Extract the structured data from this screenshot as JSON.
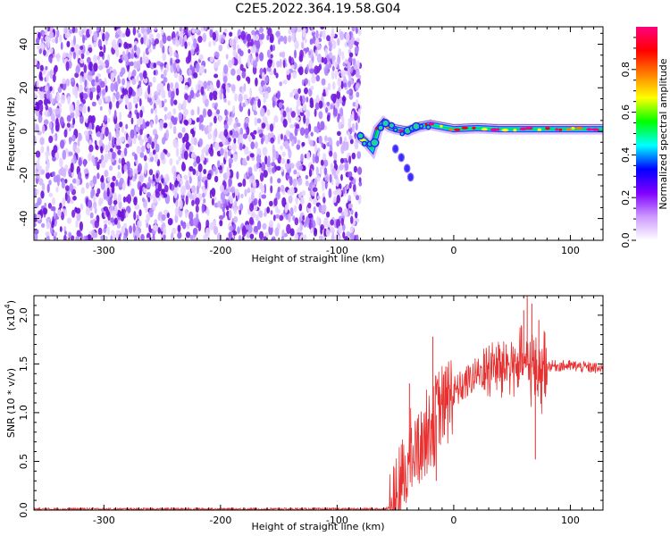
{
  "title": "C2E5.2022.364.19.58.G04",
  "chart_data": [
    {
      "type": "heatmap",
      "xlabel": "Height of straight line (km)",
      "ylabel": "Frequency (Hz)",
      "xlim": [
        -360,
        128
      ],
      "ylim": [
        -50,
        48
      ],
      "xticks": [
        -300,
        -200,
        -100,
        0,
        100
      ],
      "yticks": [
        -40,
        -20,
        0,
        20,
        40
      ],
      "noise_region": {
        "x": [
          -360,
          -80
        ],
        "y": [
          -50,
          48
        ]
      },
      "signal_track": [
        {
          "x": -80,
          "y": -3
        },
        {
          "x": -75,
          "y": -5
        },
        {
          "x": -70,
          "y": -8
        },
        {
          "x": -65,
          "y": 1
        },
        {
          "x": -60,
          "y": 4
        },
        {
          "x": -55,
          "y": 2
        },
        {
          "x": -50,
          "y": 1
        },
        {
          "x": -40,
          "y": 0
        },
        {
          "x": -30,
          "y": 2
        },
        {
          "x": -20,
          "y": 3
        },
        {
          "x": 0,
          "y": 1
        },
        {
          "x": 20,
          "y": 1.5
        },
        {
          "x": 40,
          "y": 1
        },
        {
          "x": 60,
          "y": 1
        },
        {
          "x": 80,
          "y": 1
        },
        {
          "x": 100,
          "y": 1
        },
        {
          "x": 128,
          "y": 1
        }
      ],
      "branch_track": [
        {
          "x": -50,
          "y": -8
        },
        {
          "x": -45,
          "y": -12
        },
        {
          "x": -40,
          "y": -17
        },
        {
          "x": -37,
          "y": -21
        }
      ],
      "colorbar": {
        "label": "Normalized spectral amplitude",
        "range": [
          0,
          1
        ],
        "ticks": [
          "0.0",
          "0.2",
          "0.4",
          "0.6",
          "0.8"
        ],
        "ticks_values": [
          0.0,
          0.2,
          0.4,
          0.6,
          0.8
        ],
        "colors": [
          "#ffffff",
          "#cc99ff",
          "#8000ff",
          "#0000ff",
          "#00ffff",
          "#00ff00",
          "#ffff00",
          "#ff8000",
          "#ff0000",
          "#ff0080"
        ]
      },
      "point_color": "#7b1fe0"
    },
    {
      "type": "line",
      "xlabel": "Height of straight line (km)",
      "ylabel": "SNR (10 * v/v)",
      "scale_note": "(x10",
      "scale_exp": "4",
      "scale_close": ")",
      "xlim": [
        -360,
        128
      ],
      "ylim": [
        0,
        2.2
      ],
      "xticks": [
        -300,
        -200,
        -100,
        0,
        100
      ],
      "yticks": [
        "0.0",
        "0.5",
        "1.0",
        "1.5",
        "2.0"
      ],
      "ytick_values": [
        0.0,
        0.5,
        1.0,
        1.5,
        2.0
      ],
      "line_color": "#e83030",
      "envelope": [
        {
          "x": -360,
          "y": 0.01
        },
        {
          "x": -60,
          "y": 0.01
        },
        {
          "x": -55,
          "y": 0.03
        },
        {
          "x": -50,
          "y": 0.12
        },
        {
          "x": -45,
          "y": 0.3
        },
        {
          "x": -40,
          "y": 0.45
        },
        {
          "x": -35,
          "y": 0.55
        },
        {
          "x": -30,
          "y": 0.65
        },
        {
          "x": -25,
          "y": 0.75
        },
        {
          "x": -20,
          "y": 0.9
        },
        {
          "x": -10,
          "y": 1.05
        },
        {
          "x": 0,
          "y": 1.2
        },
        {
          "x": 10,
          "y": 1.3
        },
        {
          "x": 20,
          "y": 1.4
        },
        {
          "x": 30,
          "y": 1.45
        },
        {
          "x": 40,
          "y": 1.48
        },
        {
          "x": 50,
          "y": 1.5
        },
        {
          "x": 60,
          "y": 1.5
        },
        {
          "x": 70,
          "y": 1.45
        },
        {
          "x": 80,
          "y": 1.48
        },
        {
          "x": 100,
          "y": 1.48
        },
        {
          "x": 120,
          "y": 1.46
        },
        {
          "x": 128,
          "y": 1.44
        }
      ],
      "spikes": [
        {
          "x": -38,
          "y": 1.3
        },
        {
          "x": -18,
          "y": 1.78
        },
        {
          "x": -15,
          "y": 0.3
        },
        {
          "x": 45,
          "y": 1.7
        },
        {
          "x": 60,
          "y": 2.05
        },
        {
          "x": 63,
          "y": 2.2
        },
        {
          "x": 67,
          "y": 2.12
        },
        {
          "x": 70,
          "y": 0.52
        },
        {
          "x": 73,
          "y": 1.95
        }
      ]
    }
  ]
}
